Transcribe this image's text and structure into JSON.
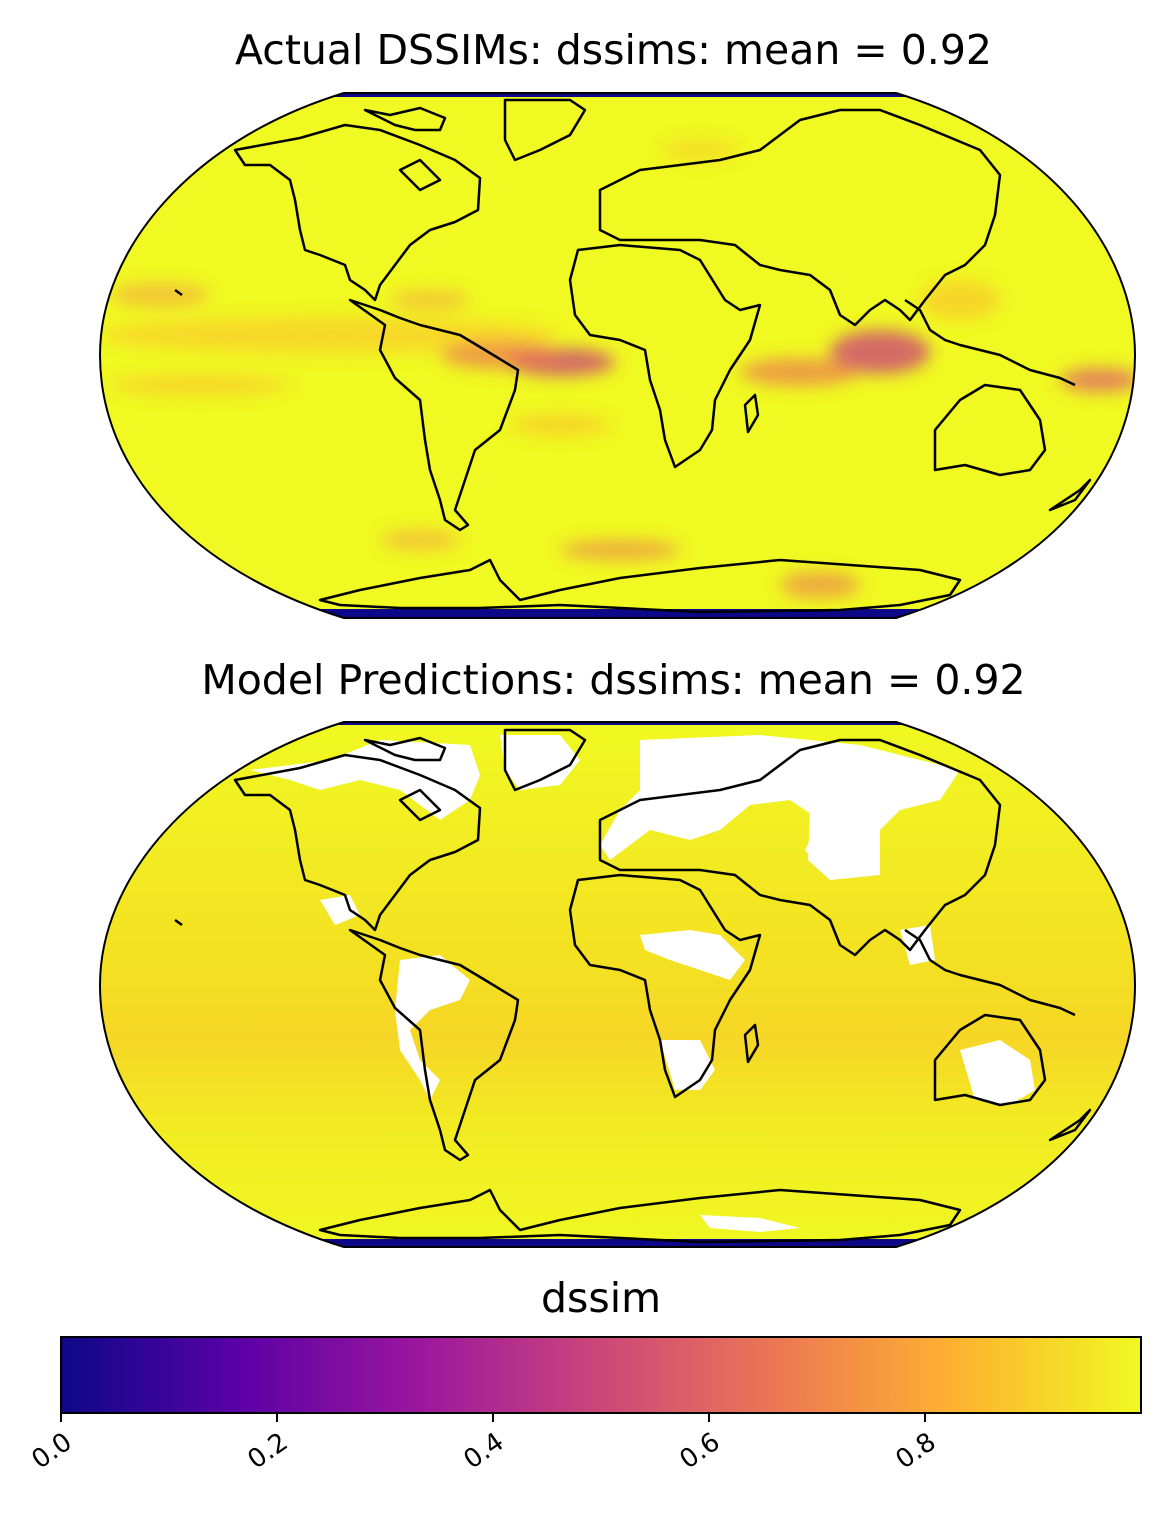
{
  "panels": [
    {
      "title": "Actual DSSIMs: dssims: mean = 0.92"
    },
    {
      "title": "Model Predictions: dssims: mean = 0.92"
    }
  ],
  "colorbar": {
    "label": "dssim",
    "colormap": "plasma",
    "range": [
      0.0,
      1.0
    ],
    "ticks": [
      "0.0",
      "0.2",
      "0.4",
      "0.6",
      "0.8"
    ],
    "colors": [
      "#0d0887",
      "#5c01a6",
      "#9c179e",
      "#cc4778",
      "#ed7953",
      "#fdb42f",
      "#f0f921"
    ]
  },
  "colors": {
    "high_similarity": "#f0f921",
    "missing": "#ffffff",
    "polar_band": "#0d0887",
    "coastline": "#000000"
  }
}
